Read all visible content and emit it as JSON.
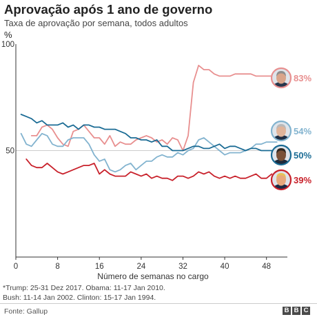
{
  "header": {
    "title": "Aprovação após 1 ano de governo",
    "subtitle": "Taxa de aprovação por semana, todos adultos",
    "unit": "%"
  },
  "footer": {
    "note_line1": "*Trump: 25-31 Dez 2017. Obama: 11-17 Jan 2010.",
    "note_line2": "Bush: 11-14 Jan 2002. Clinton: 15-17 Jan 1994.",
    "source": "Fonte: Gallup",
    "logo_letters": [
      "B",
      "B",
      "C"
    ]
  },
  "colors": {
    "bush": "#e88f8f",
    "clinton": "#82b3cf",
    "obama": "#1a6b94",
    "trump": "#c8202a",
    "axis": "#333333",
    "gridline": "#cccccc"
  },
  "chart_data": {
    "type": "line",
    "xlabel": "Número de semanas no cargo",
    "ylabel": "%",
    "xlim": [
      0,
      52
    ],
    "ylim": [
      0,
      100
    ],
    "xticks": [
      0,
      8,
      16,
      24,
      32,
      40,
      48
    ],
    "yticks": [
      0,
      50,
      100
    ],
    "grid": false,
    "series": [
      {
        "key": "bush",
        "end_label": "83%",
        "portrait": "bush-portrait",
        "x": [
          3,
          4,
          5,
          6,
          7,
          8,
          9,
          10,
          11,
          12,
          13,
          14,
          15,
          16,
          17,
          18,
          19,
          20,
          21,
          22,
          23,
          24,
          25,
          26,
          27,
          28,
          29,
          30,
          31,
          32,
          33,
          34,
          35,
          36,
          37,
          38,
          39,
          40,
          41,
          42,
          43,
          44,
          45,
          46,
          47,
          48,
          49,
          50
        ],
        "y": [
          57,
          57,
          61,
          62,
          60,
          56,
          53,
          52,
          59,
          60,
          62,
          59,
          56,
          56,
          53,
          57,
          52,
          54,
          53,
          53,
          55,
          56,
          57,
          56,
          54,
          55,
          53,
          56,
          55,
          50,
          57,
          82,
          90,
          88,
          88,
          86,
          85,
          85,
          85,
          86,
          86,
          86,
          86,
          85,
          85,
          85,
          85,
          83
        ]
      },
      {
        "key": "clinton",
        "end_label": "54%",
        "portrait": "clinton-portrait",
        "x": [
          1,
          2,
          3,
          4,
          5,
          6,
          7,
          8,
          9,
          10,
          11,
          12,
          13,
          14,
          15,
          16,
          17,
          18,
          19,
          20,
          21,
          22,
          23,
          24,
          25,
          26,
          27,
          28,
          29,
          30,
          31,
          32,
          33,
          34,
          35,
          36,
          37,
          38,
          39,
          40,
          41,
          42,
          43,
          44,
          45,
          46,
          47,
          48,
          49,
          50
        ],
        "y": [
          58,
          53,
          52,
          55,
          58,
          57,
          53,
          52,
          52,
          55,
          56,
          56,
          56,
          53,
          48,
          45,
          46,
          41,
          40,
          41,
          43,
          44,
          41,
          43,
          45,
          45,
          47,
          48,
          47,
          47,
          49,
          48,
          50,
          51,
          55,
          56,
          54,
          52,
          50,
          48,
          49,
          49,
          49,
          50,
          51,
          53,
          53,
          54,
          54,
          54
        ]
      },
      {
        "key": "obama",
        "end_label": "50%",
        "portrait": "obama-portrait",
        "x": [
          1,
          2,
          3,
          4,
          5,
          6,
          7,
          8,
          9,
          10,
          11,
          12,
          13,
          14,
          15,
          16,
          17,
          18,
          19,
          20,
          21,
          22,
          23,
          24,
          25,
          26,
          27,
          28,
          29,
          30,
          31,
          32,
          33,
          34,
          35,
          36,
          37,
          38,
          39,
          40,
          41,
          42,
          43,
          44,
          45,
          46,
          47,
          48,
          49,
          50
        ],
        "y": [
          67,
          66,
          65,
          63,
          64,
          62,
          62,
          62,
          63,
          61,
          62,
          60,
          62,
          62,
          61,
          61,
          60,
          60,
          60,
          59,
          58,
          56,
          56,
          55,
          55,
          54,
          55,
          52,
          52,
          50,
          50,
          50,
          51,
          52,
          52,
          51,
          51,
          52,
          53,
          51,
          52,
          52,
          51,
          50,
          51,
          51,
          50,
          50,
          50,
          50
        ]
      },
      {
        "key": "trump",
        "end_label": "39%",
        "portrait": "trump-portrait",
        "x": [
          2,
          3,
          4,
          5,
          6,
          7,
          8,
          9,
          10,
          11,
          12,
          13,
          14,
          15,
          16,
          17,
          18,
          19,
          20,
          21,
          22,
          23,
          24,
          25,
          26,
          27,
          28,
          29,
          30,
          31,
          32,
          33,
          34,
          35,
          36,
          37,
          38,
          39,
          40,
          41,
          42,
          43,
          44,
          45,
          46,
          47,
          48,
          49
        ],
        "y": [
          46,
          43,
          42,
          42,
          44,
          42,
          40,
          39,
          40,
          41,
          42,
          43,
          43,
          44,
          39,
          41,
          39,
          38,
          38,
          38,
          40,
          39,
          38,
          39,
          37,
          38,
          37,
          37,
          36,
          38,
          38,
          37,
          38,
          40,
          39,
          40,
          38,
          37,
          38,
          37,
          38,
          37,
          37,
          38,
          39,
          37,
          37,
          39
        ]
      }
    ]
  }
}
